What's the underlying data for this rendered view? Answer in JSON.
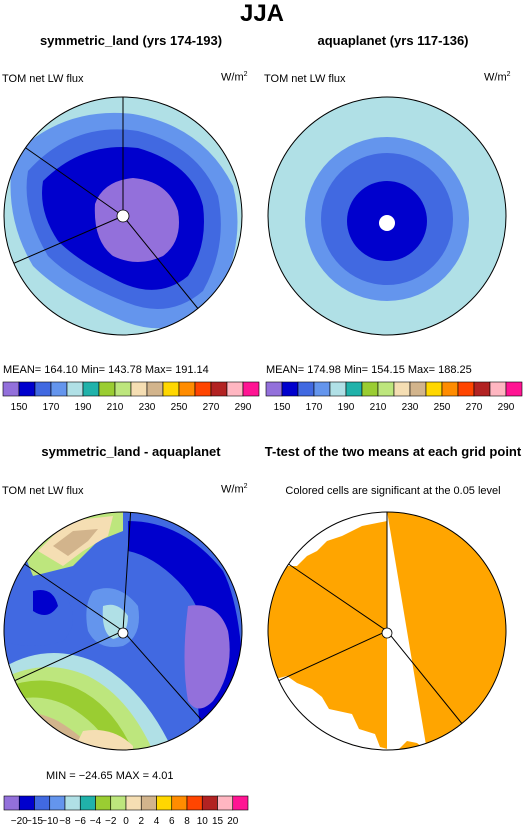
{
  "title": "JJA",
  "colors": {
    "abs_scale": [
      "#9370db",
      "#0000cd",
      "#4169e1",
      "#6495ed",
      "#b0e0e6",
      "#20b2aa",
      "#9acd32",
      "#bde67d",
      "#f5deb3",
      "#d2b48c",
      "#ffd700",
      "#ff8c00",
      "#ff4500",
      "#b22222",
      "#ffb6c1",
      "#ff1493"
    ],
    "diff_scale": [
      "#9370db",
      "#0000cd",
      "#4169e1",
      "#6495ed",
      "#b0e0e6",
      "#20b2aa",
      "#9acd32",
      "#bde67d",
      "#f5deb3",
      "#d2b48c",
      "#ffd700",
      "#ff8c00",
      "#ff4500",
      "#b22222",
      "#ffb6c1",
      "#ff1493"
    ],
    "significant": "#ffa500"
  },
  "panels": [
    {
      "title": "symmetric_land (yrs 174-193)",
      "variable": "TOM net LW flux",
      "units": "W/m",
      "units_sup": "2",
      "stats": "MEAN= 164.10   Min= 143.78   Max= 191.14",
      "colorbar_ticks": [
        "150",
        "170",
        "190",
        "210",
        "230",
        "250",
        "270",
        "290"
      ]
    },
    {
      "title": "aquaplanet (yrs 117-136)",
      "variable": "TOM net LW flux",
      "units": "W/m",
      "units_sup": "2",
      "stats": "MEAN= 174.98   Min= 154.15   Max= 188.25",
      "colorbar_ticks": [
        "150",
        "170",
        "190",
        "210",
        "230",
        "250",
        "270",
        "290"
      ]
    },
    {
      "title": "symmetric_land - aquaplanet",
      "variable": "TOM net LW flux",
      "units": "W/m",
      "units_sup": "2",
      "stats": "MIN = −24.65  MAX =    4.01",
      "colorbar_ticks": [
        "−20",
        "−15",
        "−10",
        "−8",
        "−6",
        "−4",
        "−2",
        "0",
        "2",
        "4",
        "6",
        "8",
        "10",
        "15",
        "20"
      ]
    },
    {
      "title": "T-test of the two means at each grid point",
      "subtitle": "Colored cells are significant at the 0.05 level"
    }
  ],
  "chart_data": [
    {
      "type": "heatmap",
      "title": "symmetric_land (yrs 174-193)",
      "variable": "TOM net LW flux",
      "units": "W/m2",
      "mean": 164.1,
      "min": 143.78,
      "max": 191.14,
      "levels": [
        150,
        160,
        170,
        180,
        190,
        200,
        210,
        220,
        230,
        240,
        250,
        260,
        270,
        280,
        290
      ]
    },
    {
      "type": "heatmap",
      "title": "aquaplanet (yrs 117-136)",
      "variable": "TOM net LW flux",
      "units": "W/m2",
      "mean": 174.98,
      "min": 154.15,
      "max": 188.25,
      "levels": [
        150,
        160,
        170,
        180,
        190,
        200,
        210,
        220,
        230,
        240,
        250,
        260,
        270,
        280,
        290
      ]
    },
    {
      "type": "heatmap",
      "title": "symmetric_land - aquaplanet",
      "variable": "TOM net LW flux",
      "units": "W/m2",
      "min": -24.65,
      "max": 4.01,
      "levels": [
        -20,
        -15,
        -10,
        -8,
        -6,
        -4,
        -2,
        0,
        2,
        4,
        6,
        8,
        10,
        15,
        20
      ]
    },
    {
      "type": "heatmap",
      "title": "T-test of the two means at each grid point",
      "subtitle": "Colored cells are significant at the 0.05 level",
      "significance_level": 0.05
    }
  ]
}
